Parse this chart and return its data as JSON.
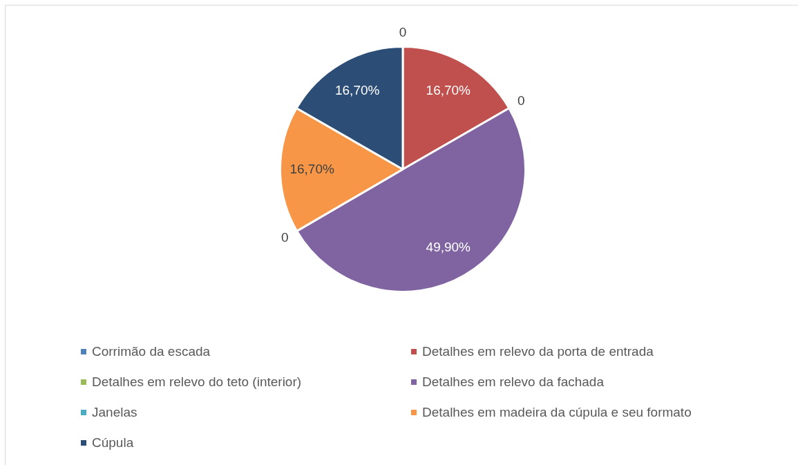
{
  "chart_data": {
    "type": "pie",
    "categories": [
      "Corrimão da escada",
      "Detalhes em relevo da porta de entrada",
      "Detalhes em relevo do teto (interior)",
      "Detalhes em relevo da fachada",
      "Janelas",
      "Detalhes em madeira da cúpula e seu formato",
      "Cúpula"
    ],
    "values": [
      0,
      16.7,
      0,
      49.9,
      0,
      16.7,
      16.7
    ],
    "colors": [
      "#4f81bd",
      "#c0504d",
      "#9bbb59",
      "#8064a2",
      "#4bacc6",
      "#f79646",
      "#2c4d75"
    ],
    "value_labels": [
      "0",
      "16,70%",
      "0",
      "49,90%",
      "0",
      "16,70%",
      "16,70%"
    ],
    "legend": "bottom"
  }
}
